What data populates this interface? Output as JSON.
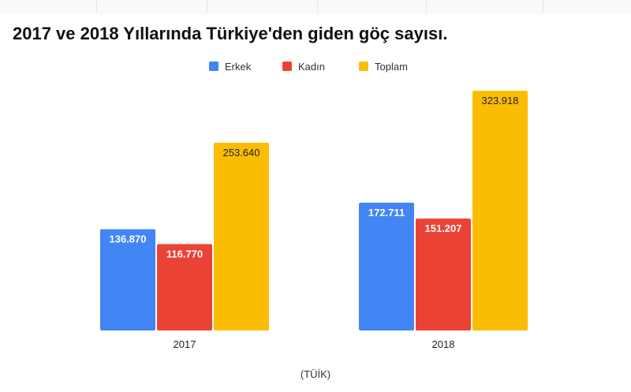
{
  "chart_data": {
    "type": "bar",
    "title": "2017 ve 2018 Yıllarında Türkiye'den giden göç sayısı.",
    "categories": [
      "2017",
      "2018"
    ],
    "series": [
      {
        "name": "Erkek",
        "color": "#4285f4",
        "values": [
          136870,
          172711
        ],
        "labels": [
          "136.870",
          "172.711"
        ]
      },
      {
        "name": "Kadın",
        "color": "#ea4335",
        "values": [
          116770,
          151207
        ],
        "labels": [
          "116.770",
          "151.207"
        ]
      },
      {
        "name": "Toplam",
        "color": "#fbbc04",
        "values": [
          253640,
          323918
        ],
        "labels": [
          "253.640",
          "323.918"
        ]
      }
    ],
    "ylim": [
      0,
      340000
    ],
    "legend_position": "top-center",
    "grid": false,
    "source": "(TÜİK)"
  }
}
